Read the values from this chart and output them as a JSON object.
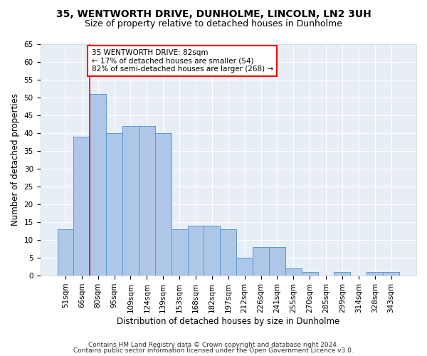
{
  "title": "35, WENTWORTH DRIVE, DUNHOLME, LINCOLN, LN2 3UH",
  "subtitle": "Size of property relative to detached houses in Dunholme",
  "xlabel": "Distribution of detached houses by size in Dunholme",
  "ylabel": "Number of detached properties",
  "categories": [
    "51sqm",
    "66sqm",
    "80sqm",
    "95sqm",
    "109sqm",
    "124sqm",
    "139sqm",
    "153sqm",
    "168sqm",
    "182sqm",
    "197sqm",
    "212sqm",
    "226sqm",
    "241sqm",
    "255sqm",
    "270sqm",
    "285sqm",
    "299sqm",
    "314sqm",
    "328sqm",
    "343sqm"
  ],
  "values": [
    13,
    39,
    51,
    40,
    42,
    42,
    40,
    13,
    14,
    14,
    13,
    5,
    8,
    8,
    2,
    1,
    0,
    1,
    0,
    1,
    1
  ],
  "bar_color": "#aec6e8",
  "bar_edge_color": "#5b9bd5",
  "annotation_line1": "35 WENTWORTH DRIVE: 82sqm",
  "annotation_line2": "← 17% of detached houses are smaller (54)",
  "annotation_line3": "82% of semi-detached houses are larger (268) →",
  "annotation_box_color": "white",
  "annotation_box_edge": "red",
  "vline_color": "red",
  "vline_x": 1.5,
  "ylim": [
    0,
    65
  ],
  "yticks": [
    0,
    5,
    10,
    15,
    20,
    25,
    30,
    35,
    40,
    45,
    50,
    55,
    60,
    65
  ],
  "footer1": "Contains HM Land Registry data © Crown copyright and database right 2024.",
  "footer2": "Contains public sector information licensed under the Open Government Licence v3.0.",
  "bg_color": "#e8eef5",
  "title_fontsize": 10,
  "subtitle_fontsize": 9,
  "ylabel_fontsize": 8.5,
  "xlabel_fontsize": 8.5,
  "tick_fontsize": 7.5,
  "annot_fontsize": 7.5,
  "footer_fontsize": 6.5
}
